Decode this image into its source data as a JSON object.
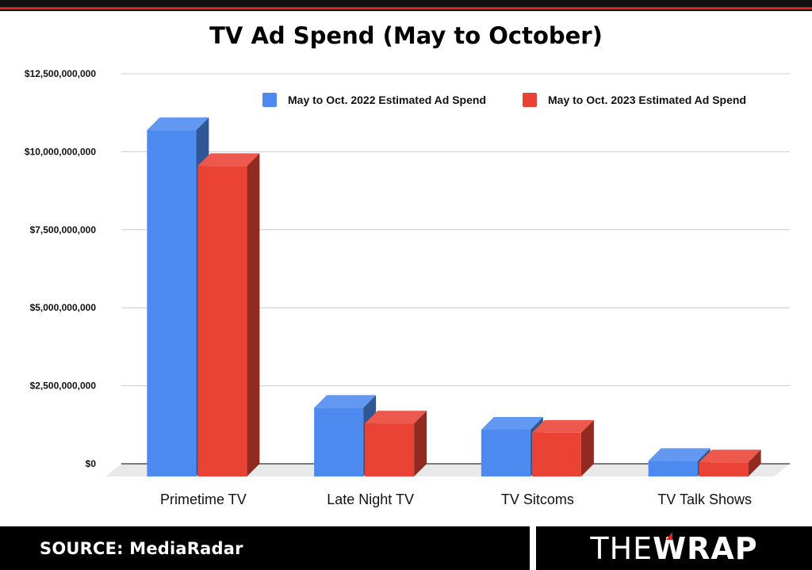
{
  "chart_data": {
    "type": "bar",
    "title": "TV Ad Spend (May to October)",
    "categories": [
      "Primetime TV",
      "Late Night TV",
      "TV Sitcoms",
      "TV Talk Shows"
    ],
    "series": [
      {
        "name": "May to Oct. 2022 Estimated Ad Spend",
        "color": "#4d8af0",
        "values": [
          11100000000,
          2200000000,
          1500000000,
          500000000
        ]
      },
      {
        "name": "May to Oct. 2023 Estimated Ad Spend",
        "color": "#ea4335",
        "values": [
          9950000000,
          1700000000,
          1400000000,
          450000000
        ]
      }
    ],
    "ylim": [
      0,
      12500000000
    ],
    "yticks": [
      "$0",
      "$2,500,000,000",
      "$5,000,000,000",
      "$7,500,000,000",
      "$10,000,000,000",
      "$12,500,000,000"
    ],
    "grid": true,
    "legend": "top-right",
    "style": "3d"
  },
  "footer": {
    "source": "SOURCE: MediaRadar",
    "logo_the": "THE",
    "logo_wrap": "WRAP"
  },
  "colors": {
    "top_bar": "#111111",
    "accent_red": "#e0241b"
  }
}
